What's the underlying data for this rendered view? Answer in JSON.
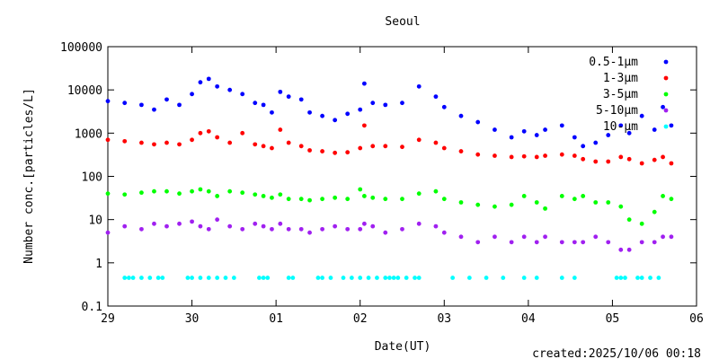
{
  "chart_data": {
    "type": "scatter",
    "title": "Seoul",
    "xlabel": "Date(UT)",
    "ylabel": "Number conc.[particles/L]",
    "yscale": "log",
    "ylim": [
      0.1,
      100000
    ],
    "xlim": [
      0,
      7
    ],
    "x_unit": "days from 29",
    "x_ticks": [
      {
        "x": 0,
        "label": "29"
      },
      {
        "x": 1,
        "label": "30"
      },
      {
        "x": 2,
        "label": "01"
      },
      {
        "x": 3,
        "label": "02"
      },
      {
        "x": 4,
        "label": "03"
      },
      {
        "x": 5,
        "label": "04"
      },
      {
        "x": 6,
        "label": "05"
      },
      {
        "x": 7,
        "label": "06"
      }
    ],
    "y_ticks": [
      {
        "y": 0.1,
        "label": "0.1"
      },
      {
        "y": 1,
        "label": "1"
      },
      {
        "y": 10,
        "label": "10"
      },
      {
        "y": 100,
        "label": "100"
      },
      {
        "y": 1000,
        "label": "1000"
      },
      {
        "y": 10000,
        "label": "10000"
      },
      {
        "y": 100000,
        "label": "100000"
      }
    ],
    "legend_position": "top-right",
    "series": [
      {
        "name": "0.5-1μm",
        "color": "#0000ff",
        "x": [
          0,
          0.2,
          0.4,
          0.55,
          0.7,
          0.85,
          1.0,
          1.1,
          1.2,
          1.3,
          1.45,
          1.6,
          1.75,
          1.85,
          1.95,
          2.05,
          2.15,
          2.3,
          2.4,
          2.55,
          2.7,
          2.85,
          3.0,
          3.05,
          3.15,
          3.3,
          3.5,
          3.7,
          3.9,
          4.0,
          4.2,
          4.4,
          4.6,
          4.8,
          4.95,
          5.1,
          5.2,
          5.4,
          5.55,
          5.65,
          5.8,
          5.95,
          6.1,
          6.2,
          6.35,
          6.5,
          6.6,
          6.7
        ],
        "y": [
          5500,
          5000,
          4500,
          3500,
          6000,
          4500,
          8000,
          15000,
          18000,
          12000,
          10000,
          8000,
          5000,
          4500,
          3000,
          9000,
          7000,
          6000,
          3000,
          2500,
          2000,
          2800,
          3500,
          14000,
          5000,
          4500,
          5000,
          12000,
          7000,
          4000,
          2500,
          1800,
          1200,
          800,
          1100,
          900,
          1200,
          1500,
          800,
          500,
          600,
          900,
          1500,
          1000,
          2500,
          1200,
          4000,
          1500
        ]
      },
      {
        "name": "1-3μm",
        "color": "#ff0000",
        "x": [
          0,
          0.2,
          0.4,
          0.55,
          0.7,
          0.85,
          1.0,
          1.1,
          1.2,
          1.3,
          1.45,
          1.6,
          1.75,
          1.85,
          1.95,
          2.05,
          2.15,
          2.3,
          2.4,
          2.55,
          2.7,
          2.85,
          3.0,
          3.05,
          3.15,
          3.3,
          3.5,
          3.7,
          3.9,
          4.0,
          4.2,
          4.4,
          4.6,
          4.8,
          4.95,
          5.1,
          5.2,
          5.4,
          5.55,
          5.65,
          5.8,
          5.95,
          6.1,
          6.2,
          6.35,
          6.5,
          6.6,
          6.7
        ],
        "y": [
          700,
          650,
          600,
          550,
          600,
          550,
          700,
          1000,
          1100,
          800,
          600,
          1000,
          550,
          500,
          450,
          1200,
          600,
          500,
          400,
          380,
          350,
          360,
          450,
          1500,
          500,
          500,
          480,
          700,
          600,
          450,
          380,
          320,
          300,
          280,
          290,
          280,
          300,
          320,
          300,
          250,
          220,
          220,
          280,
          250,
          200,
          240,
          280,
          200
        ]
      },
      {
        "name": "3-5μm",
        "color": "#00ff00",
        "x": [
          0,
          0.2,
          0.4,
          0.55,
          0.7,
          0.85,
          1.0,
          1.1,
          1.2,
          1.3,
          1.45,
          1.6,
          1.75,
          1.85,
          1.95,
          2.05,
          2.15,
          2.3,
          2.4,
          2.55,
          2.7,
          2.85,
          3.0,
          3.05,
          3.15,
          3.3,
          3.5,
          3.7,
          3.9,
          4.0,
          4.2,
          4.4,
          4.6,
          4.8,
          4.95,
          5.1,
          5.2,
          5.4,
          5.55,
          5.65,
          5.8,
          5.95,
          6.1,
          6.2,
          6.35,
          6.5,
          6.6,
          6.7
        ],
        "y": [
          40,
          38,
          42,
          45,
          45,
          40,
          45,
          50,
          45,
          35,
          45,
          42,
          38,
          35,
          32,
          38,
          30,
          30,
          28,
          30,
          32,
          30,
          50,
          35,
          32,
          30,
          30,
          40,
          45,
          30,
          25,
          22,
          20,
          22,
          35,
          25,
          18,
          35,
          30,
          35,
          25,
          25,
          20,
          10,
          8,
          15,
          35,
          30
        ]
      },
      {
        "name": "5-10μm",
        "color": "#a020f0",
        "x": [
          0,
          0.2,
          0.4,
          0.55,
          0.7,
          0.85,
          1.0,
          1.1,
          1.2,
          1.3,
          1.45,
          1.6,
          1.75,
          1.85,
          1.95,
          2.05,
          2.15,
          2.3,
          2.4,
          2.55,
          2.7,
          2.85,
          3.0,
          3.05,
          3.15,
          3.3,
          3.5,
          3.7,
          3.9,
          4.0,
          4.2,
          4.4,
          4.6,
          4.8,
          4.95,
          5.1,
          5.2,
          5.4,
          5.55,
          5.65,
          5.8,
          5.95,
          6.1,
          6.2,
          6.35,
          6.5,
          6.6,
          6.7
        ],
        "y": [
          5,
          7,
          6,
          8,
          7,
          8,
          9,
          7,
          6,
          10,
          7,
          6,
          8,
          7,
          6,
          8,
          6,
          6,
          5,
          6,
          7,
          6,
          6,
          8,
          7,
          5,
          6,
          8,
          7,
          5,
          4,
          3,
          4,
          3,
          4,
          3,
          4,
          3,
          3,
          3,
          4,
          3,
          2,
          2,
          3,
          3,
          4,
          4
        ]
      },
      {
        "name": "10-μm",
        "color": "#00ffff",
        "x": [
          0.2,
          0.25,
          0.3,
          0.4,
          0.5,
          0.6,
          0.65,
          0.95,
          1.0,
          1.1,
          1.2,
          1.3,
          1.4,
          1.5,
          1.8,
          1.85,
          1.9,
          2.15,
          2.2,
          2.5,
          2.55,
          2.65,
          2.8,
          2.9,
          3.0,
          3.1,
          3.2,
          3.3,
          3.35,
          3.4,
          3.45,
          3.55,
          3.65,
          3.7,
          4.1,
          4.3,
          4.5,
          4.7,
          4.95,
          5.1,
          5.4,
          5.55,
          6.05,
          6.1,
          6.15,
          6.3,
          6.35,
          6.45,
          6.55
        ],
        "y": [
          0.45,
          0.45,
          0.45,
          0.45,
          0.45,
          0.45,
          0.45,
          0.45,
          0.45,
          0.45,
          0.45,
          0.45,
          0.45,
          0.45,
          0.45,
          0.45,
          0.45,
          0.45,
          0.45,
          0.45,
          0.45,
          0.45,
          0.45,
          0.45,
          0.45,
          0.45,
          0.45,
          0.45,
          0.45,
          0.45,
          0.45,
          0.45,
          0.45,
          0.45,
          0.45,
          0.45,
          0.45,
          0.45,
          0.45,
          0.45,
          0.45,
          0.45,
          0.45,
          0.45,
          0.45,
          0.45,
          0.45,
          0.45,
          0.45
        ]
      }
    ]
  },
  "footer": {
    "created": "created:2025/10/06 00:18"
  }
}
